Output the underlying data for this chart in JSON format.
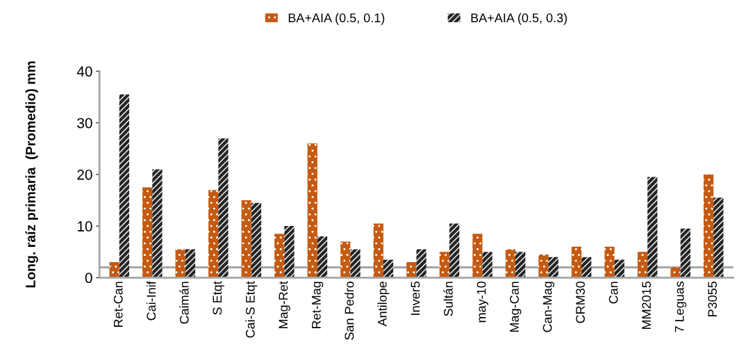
{
  "chart_data": {
    "type": "bar",
    "ylabel": "Long. raíz primaria  (Promedio) mm",
    "categories": [
      "Ret-Can",
      "Cai-Inif",
      "Caimán",
      "S Etqt",
      "Cai-S Etqt",
      "Mag-Ret",
      "Ret-Mag",
      "San Pedro",
      "Antilope",
      "Inver5",
      "Sultán",
      "may-10",
      "Mag-Can",
      "Can-Mag",
      "CRM30",
      "Can",
      "MM2015",
      "7 Leguas",
      "P3055"
    ],
    "series": [
      {
        "name": "BA+AIA (0.5, 0.1)",
        "color": "#c55a11",
        "values": [
          3,
          17.5,
          5.5,
          17,
          15,
          8.5,
          26,
          7,
          10.5,
          3,
          5,
          8.5,
          5.5,
          4.5,
          6,
          6,
          5,
          2,
          20
        ]
      },
      {
        "name": "BA+AIA (0.5, 0.3)",
        "color": "#262626",
        "values": [
          35.5,
          21,
          5.5,
          27,
          14.5,
          10,
          8,
          5.5,
          3.5,
          5.5,
          10.5,
          5,
          5,
          4,
          4,
          3.5,
          19.5,
          9.5,
          15.5
        ]
      }
    ],
    "ylim": [
      0,
      40
    ],
    "yticks": [
      0,
      10,
      20,
      30,
      40
    ],
    "ref_lines": [
      {
        "axis": "y",
        "value": 2,
        "color": "#a6a6a6"
      }
    ],
    "grid": false,
    "legend": "top"
  }
}
